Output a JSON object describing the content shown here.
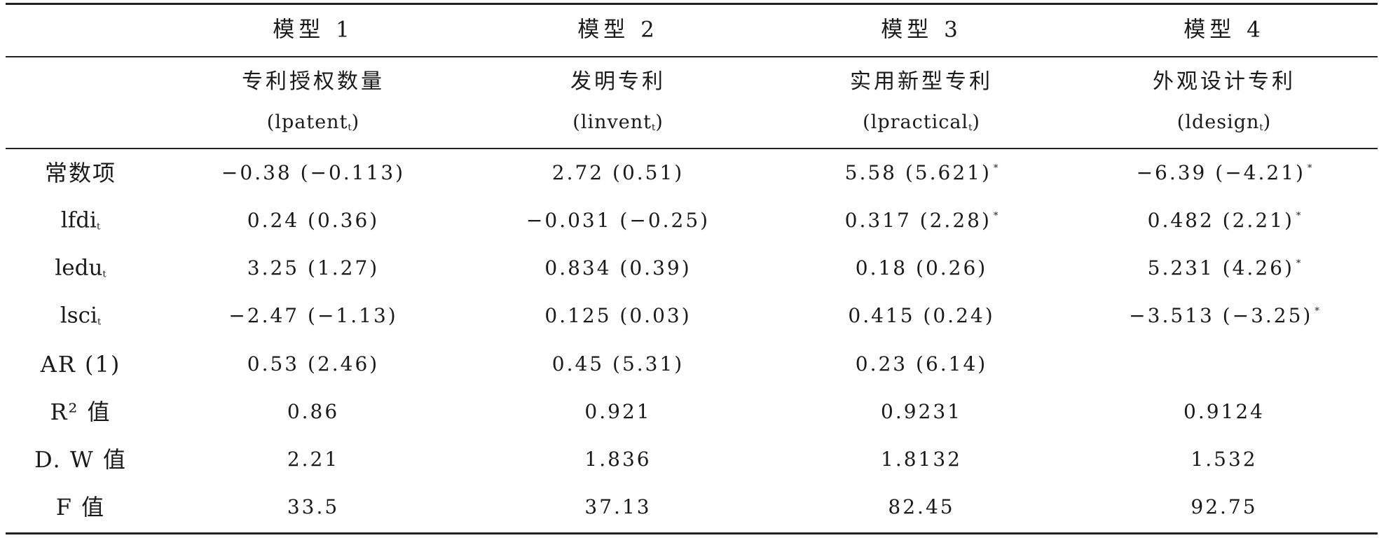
{
  "columns": [
    {
      "model": "模型 1",
      "name": "专利授权数量",
      "var": "lpatent",
      "sub": "t"
    },
    {
      "model": "模型 2",
      "name": "发明专利",
      "var": "linvent",
      "sub": "t"
    },
    {
      "model": "模型 3",
      "name": "实用新型专利",
      "var": "lpractical",
      "sub": "t"
    },
    {
      "model": "模型 4",
      "name": "外观设计专利",
      "var": "ldesign",
      "sub": "t"
    }
  ],
  "rows": [
    {
      "label": "常数项",
      "values": [
        {
          "v": "−0.38 (−0.113)",
          "star": ""
        },
        {
          "v": "2.72 (0.51)",
          "star": ""
        },
        {
          "v": "5.58 (5.621)",
          "star": "*"
        },
        {
          "v": "−6.39 (−4.21)",
          "star": "*"
        }
      ]
    },
    {
      "label": "lfdi",
      "label_sub": "t",
      "values": [
        {
          "v": "0.24 (0.36)",
          "star": ""
        },
        {
          "v": "−0.031 (−0.25)",
          "star": ""
        },
        {
          "v": "0.317 (2.28)",
          "star": "*"
        },
        {
          "v": "0.482 (2.21)",
          "star": "*"
        }
      ]
    },
    {
      "label": "ledu",
      "label_sub": "t",
      "values": [
        {
          "v": "3.25 (1.27)",
          "star": ""
        },
        {
          "v": "0.834 (0.39)",
          "star": ""
        },
        {
          "v": "0.18 (0.26)",
          "star": ""
        },
        {
          "v": "5.231 (4.26)",
          "star": "*"
        }
      ]
    },
    {
      "label": "lsci",
      "label_sub": "t",
      "values": [
        {
          "v": "−2.47 (−1.13)",
          "star": ""
        },
        {
          "v": "0.125 (0.03)",
          "star": ""
        },
        {
          "v": "0.415 (0.24)",
          "star": ""
        },
        {
          "v": "−3.513 (−3.25)",
          "star": "*"
        }
      ]
    },
    {
      "label": "AR (1)",
      "values": [
        {
          "v": "0.53 (2.46)",
          "star": ""
        },
        {
          "v": "0.45 (5.31)",
          "star": ""
        },
        {
          "v": "0.23 (6.14)",
          "star": ""
        },
        {
          "v": "",
          "star": ""
        }
      ]
    },
    {
      "label": "R² 值",
      "values": [
        {
          "v": "0.86",
          "star": ""
        },
        {
          "v": "0.921",
          "star": ""
        },
        {
          "v": "0.9231",
          "star": ""
        },
        {
          "v": "0.9124",
          "star": ""
        }
      ]
    },
    {
      "label": "D. W 值",
      "values": [
        {
          "v": "2.21",
          "star": ""
        },
        {
          "v": "1.836",
          "star": ""
        },
        {
          "v": "1.8132",
          "star": ""
        },
        {
          "v": "1.532",
          "star": ""
        }
      ]
    },
    {
      "label": "F 值",
      "values": [
        {
          "v": "33.5",
          "star": ""
        },
        {
          "v": "37.13",
          "star": ""
        },
        {
          "v": "82.45",
          "star": ""
        },
        {
          "v": "92.75",
          "star": ""
        }
      ]
    }
  ]
}
